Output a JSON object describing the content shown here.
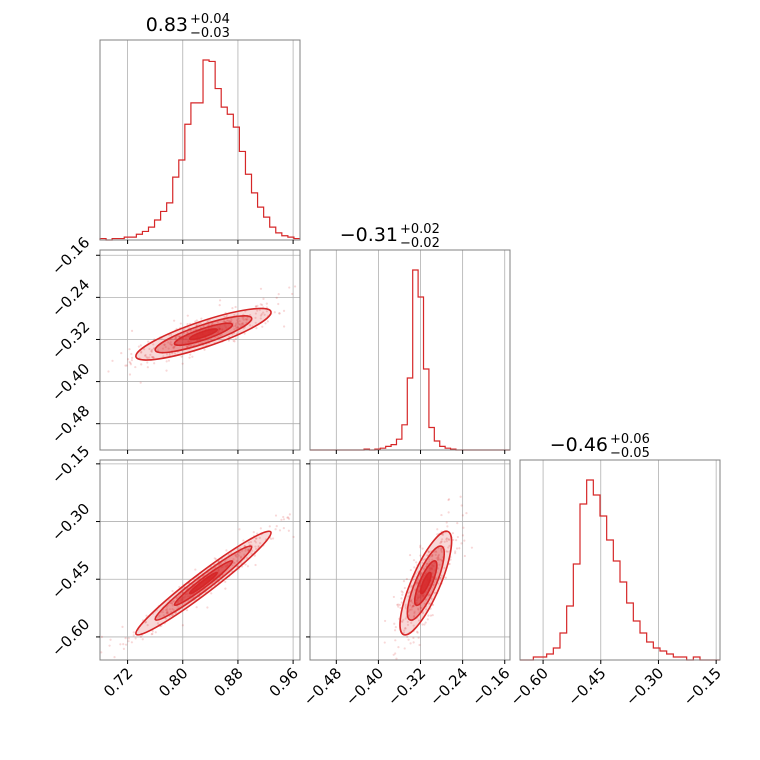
{
  "chart_data": {
    "type": "corner",
    "color": "#d62728",
    "params": [
      {
        "title_main": "0.83",
        "title_plus": "+0.04",
        "title_minus": "−0.03",
        "median": 0.83,
        "err_plus": 0.04,
        "err_minus": 0.03,
        "range": [
          0.68,
          0.97
        ],
        "ticks": [
          0.72,
          0.8,
          0.88,
          0.96
        ],
        "tick_labels": [
          "0.72",
          "0.80",
          "0.88",
          "0.96"
        ]
      },
      {
        "title_main": "−0.31",
        "title_plus": "+0.02",
        "title_minus": "−0.02",
        "median": -0.31,
        "err_plus": 0.02,
        "err_minus": 0.02,
        "range": [
          -0.53,
          -0.15
        ],
        "ticks": [
          -0.48,
          -0.4,
          -0.32,
          -0.24,
          -0.16
        ],
        "tick_labels": [
          "−0.48",
          "−0.40",
          "−0.32",
          "−0.24",
          "−0.16"
        ]
      },
      {
        "title_main": "−0.46",
        "title_plus": "+0.06",
        "title_minus": "−0.05",
        "median": -0.46,
        "err_plus": 0.06,
        "err_minus": 0.05,
        "range": [
          -0.66,
          -0.14
        ],
        "ticks": [
          -0.6,
          -0.45,
          -0.3,
          -0.15
        ],
        "tick_labels": [
          "−0.60",
          "−0.45",
          "−0.30",
          "−0.15"
        ]
      }
    ],
    "histograms": [
      {
        "param": 0,
        "counts": [
          1,
          0,
          1,
          1,
          2,
          2,
          4,
          6,
          9,
          14,
          20,
          26,
          44,
          56,
          81,
          96,
          96,
          126,
          125,
          106,
          93,
          88,
          79,
          62,
          46,
          33,
          23,
          16,
          9,
          5,
          3,
          2,
          1
        ]
      },
      {
        "param": 1,
        "counts": [
          0,
          0,
          0,
          0,
          0,
          0,
          0,
          0,
          0,
          0,
          1,
          0,
          1,
          2,
          4,
          6,
          12,
          28,
          80,
          200,
          170,
          90,
          25,
          10,
          4,
          2,
          1,
          0,
          0,
          0,
          0,
          0,
          0,
          0,
          0,
          0,
          0
        ]
      },
      {
        "param": 2,
        "counts": [
          0,
          0,
          1,
          1,
          2,
          4,
          9,
          18,
          32,
          52,
          60,
          55,
          48,
          40,
          33,
          26,
          19,
          13,
          9,
          6,
          4,
          3,
          2,
          1,
          1,
          0,
          1,
          0,
          0,
          0
        ]
      }
    ],
    "joint_2d": [
      {
        "x_param": 0,
        "y_param": 1,
        "mean": [
          0.83,
          -0.31
        ],
        "sd": [
          0.04,
          0.02
        ],
        "corr": 0.85
      },
      {
        "x_param": 0,
        "y_param": 2,
        "mean": [
          0.83,
          -0.46
        ],
        "sd": [
          0.04,
          0.055
        ],
        "corr": 0.97
      },
      {
        "x_param": 1,
        "y_param": 2,
        "mean": [
          -0.31,
          -0.46
        ],
        "sd": [
          0.02,
          0.055
        ],
        "corr": 0.8
      }
    ],
    "grid": true
  }
}
